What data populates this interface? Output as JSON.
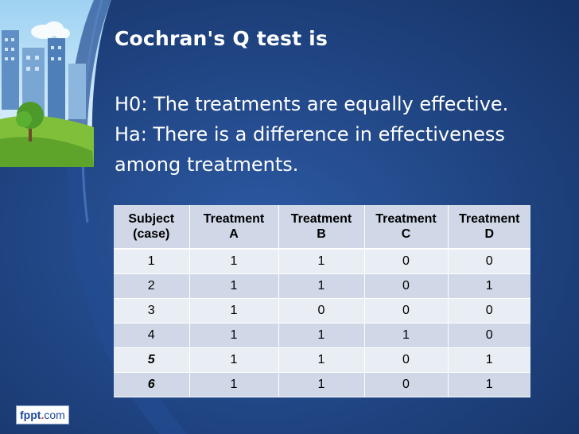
{
  "slide": {
    "title": "Cochran's Q test is",
    "body_lines": [
      "H0: The treatments are equally effective.",
      "Ha: There is a difference in effectiveness",
      "among treatments."
    ]
  },
  "table": {
    "headers": [
      [
        "Subject",
        "(case)"
      ],
      [
        "Treatment",
        "A"
      ],
      [
        "Treatment",
        "B"
      ],
      [
        "Treatment",
        "C"
      ],
      [
        "Treatment",
        "D"
      ]
    ],
    "rows": [
      [
        "1",
        "1",
        "1",
        "0",
        "0"
      ],
      [
        "2",
        "1",
        "1",
        "0",
        "1"
      ],
      [
        "3",
        "1",
        "0",
        "0",
        "0"
      ],
      [
        "4",
        "1",
        "1",
        "1",
        "0"
      ],
      [
        "5",
        "1",
        "1",
        "0",
        "1"
      ],
      [
        "6",
        "1",
        "1",
        "0",
        "1"
      ]
    ]
  },
  "logo": {
    "part1": "fppt",
    "part2": ".",
    "part3": "com"
  },
  "colors": {
    "background": "#1d3f7a",
    "header_fill": "#d0d8e8",
    "row_light": "#e9edf4",
    "row_dark": "#d0d8e8"
  }
}
